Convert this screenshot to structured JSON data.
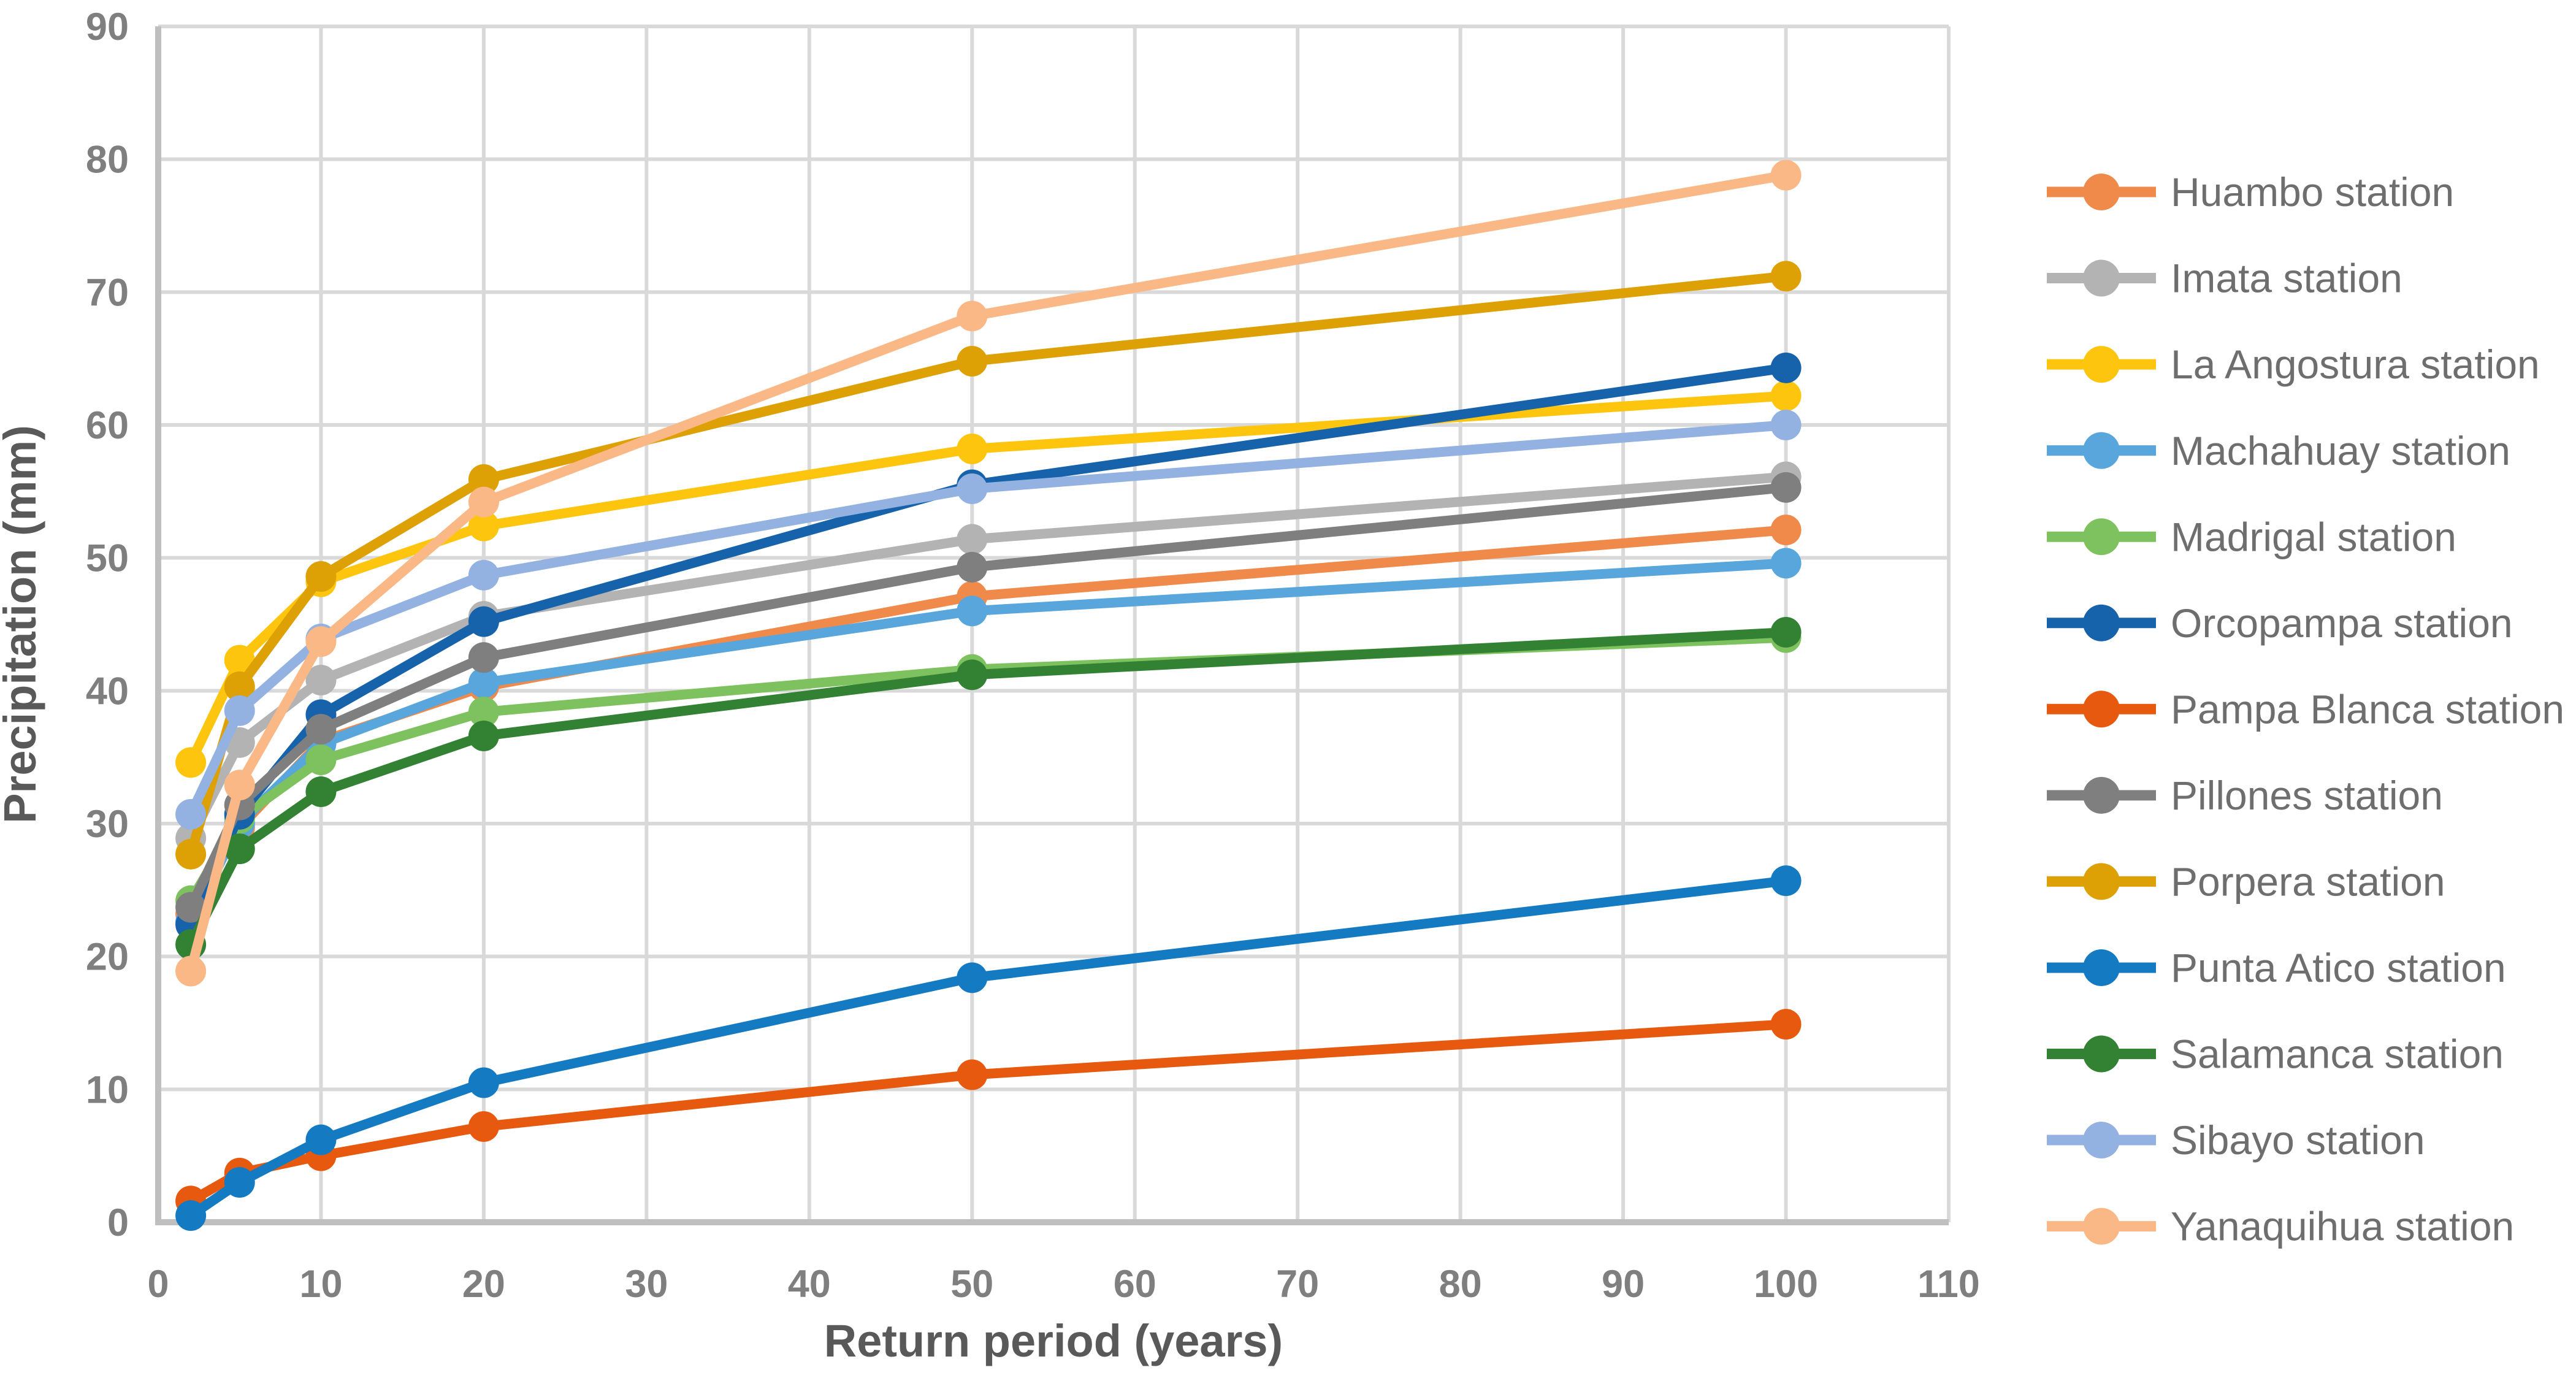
{
  "figure": {
    "background": "#FFFFFF",
    "axis_color": "#BFBFBF",
    "grid_color": "#D9D9D9",
    "tick_label_color": "#7F7F7F",
    "axis_title_color": "#595959",
    "legend_text_color": "#6E6E6E"
  },
  "chart_data": {
    "type": "line",
    "title": "",
    "xlabel": "Return period (years)",
    "ylabel": "Precipitation (mm)",
    "x": [
      2,
      5,
      10,
      20,
      50,
      100
    ],
    "xlim": [
      0,
      110
    ],
    "ylim": [
      0,
      90
    ],
    "x_ticks": [
      0,
      10,
      20,
      30,
      40,
      50,
      60,
      70,
      80,
      90,
      100,
      110
    ],
    "y_ticks": [
      0,
      10,
      20,
      30,
      40,
      50,
      60,
      70,
      80,
      90
    ],
    "grid": true,
    "legend_position": "right",
    "marker": "circle",
    "series": [
      {
        "name": "Huambo station",
        "color": "#F08A4B",
        "values": [
          23.2,
          29.7,
          36.2,
          40.3,
          47.1,
          52.1
        ]
      },
      {
        "name": "Imata station",
        "color": "#B3B3B3",
        "values": [
          28.9,
          36.1,
          40.8,
          45.6,
          51.4,
          56.1
        ]
      },
      {
        "name": "La Angostura station",
        "color": "#FEC50F",
        "values": [
          34.6,
          42.3,
          48.2,
          52.4,
          58.2,
          62.2
        ]
      },
      {
        "name": "Machahuay station",
        "color": "#58A6DC",
        "values": [
          22.6,
          30.0,
          36.0,
          40.6,
          46.0,
          49.6
        ]
      },
      {
        "name": "Madrigal station",
        "color": "#7DC25E",
        "values": [
          24.2,
          30.4,
          34.8,
          38.4,
          41.6,
          44.0
        ]
      },
      {
        "name": "Orcopampa station",
        "color": "#1763AB",
        "values": [
          22.4,
          30.7,
          38.2,
          45.2,
          55.5,
          64.3
        ]
      },
      {
        "name": "Pampa Blanca station",
        "color": "#E7590E",
        "values": [
          1.6,
          3.7,
          5.0,
          7.2,
          11.1,
          14.9
        ]
      },
      {
        "name": "Pillones station",
        "color": "#7F7F7F",
        "values": [
          23.7,
          31.4,
          37.1,
          42.5,
          49.3,
          55.3
        ]
      },
      {
        "name": "Porpera station",
        "color": "#DDA005",
        "values": [
          27.7,
          40.3,
          48.6,
          55.9,
          64.8,
          71.2
        ]
      },
      {
        "name": "Punta Atico station",
        "color": "#147AC2",
        "values": [
          0.5,
          3.0,
          6.2,
          10.5,
          18.4,
          25.7
        ]
      },
      {
        "name": "Salamanca station",
        "color": "#338233",
        "values": [
          20.9,
          28.1,
          32.4,
          36.6,
          41.2,
          44.4
        ]
      },
      {
        "name": "Sibayo station",
        "color": "#93B2E1",
        "values": [
          30.7,
          38.5,
          43.9,
          48.7,
          55.2,
          60.0
        ]
      },
      {
        "name": "Yanaquihua station",
        "color": "#FAB886",
        "values": [
          18.9,
          32.9,
          43.7,
          54.2,
          68.2,
          78.8
        ]
      }
    ]
  }
}
